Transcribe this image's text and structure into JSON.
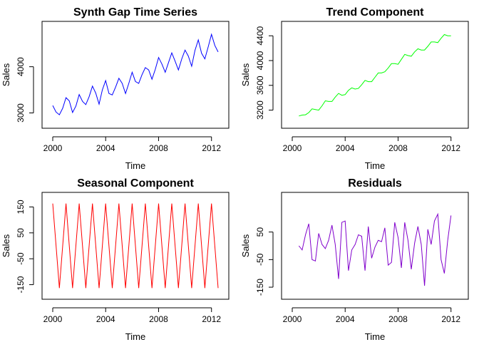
{
  "chart_data": [
    {
      "type": "line",
      "title": "Synth Gap Time Series",
      "xlabel": "Time",
      "ylabel": "Sales",
      "xlim": [
        2000,
        2012.5
      ],
      "ylim": [
        2900,
        4750
      ],
      "xticks": [
        2000,
        2004,
        2008,
        2012
      ],
      "yticks": [
        3000,
        4000
      ],
      "color": "#0000ff",
      "x": [
        2000.0,
        2000.25,
        2000.5,
        2000.75,
        2001.0,
        2001.25,
        2001.5,
        2001.75,
        2002.0,
        2002.25,
        2002.5,
        2002.75,
        2003.0,
        2003.25,
        2003.5,
        2003.75,
        2004.0,
        2004.25,
        2004.5,
        2004.75,
        2005.0,
        2005.25,
        2005.5,
        2005.75,
        2006.0,
        2006.25,
        2006.5,
        2006.75,
        2007.0,
        2007.25,
        2007.5,
        2007.75,
        2008.0,
        2008.25,
        2008.5,
        2008.75,
        2009.0,
        2009.25,
        2009.5,
        2009.75,
        2010.0,
        2010.25,
        2010.5,
        2010.75,
        2011.0,
        2011.25,
        2011.5,
        2011.75,
        2012.0,
        2012.25,
        2012.5
      ],
      "values": [
        3160,
        3020,
        2960,
        3100,
        3330,
        3260,
        3010,
        3150,
        3400,
        3250,
        3180,
        3350,
        3580,
        3430,
        3190,
        3500,
        3700,
        3420,
        3390,
        3560,
        3750,
        3640,
        3420,
        3640,
        3880,
        3680,
        3640,
        3830,
        3980,
        3930,
        3730,
        3940,
        4200,
        4060,
        3880,
        4090,
        4300,
        4120,
        3930,
        4170,
        4360,
        4230,
        4010,
        4350,
        4580,
        4290,
        4170,
        4430,
        4700,
        4460,
        4320
      ]
    },
    {
      "type": "line",
      "title": "Trend Component",
      "xlabel": "Time",
      "ylabel": "Sales",
      "xlim": [
        2000,
        2012.5
      ],
      "ylim": [
        3080,
        4460
      ],
      "xticks": [
        2000,
        2004,
        2008,
        2012
      ],
      "yticks": [
        3200,
        3600,
        4000,
        4400
      ],
      "color": "#00ff00",
      "x": [
        2000.5,
        2000.75,
        2001.0,
        2001.25,
        2001.5,
        2001.75,
        2002.0,
        2002.25,
        2002.5,
        2002.75,
        2003.0,
        2003.25,
        2003.5,
        2003.75,
        2004.0,
        2004.25,
        2004.5,
        2004.75,
        2005.0,
        2005.25,
        2005.5,
        2005.75,
        2006.0,
        2006.25,
        2006.5,
        2006.75,
        2007.0,
        2007.25,
        2007.5,
        2007.75,
        2008.0,
        2008.25,
        2008.5,
        2008.75,
        2009.0,
        2009.25,
        2009.5,
        2009.75,
        2010.0,
        2010.25,
        2010.5,
        2010.75,
        2011.0,
        2011.25,
        2011.5,
        2011.75,
        2012.0
      ],
      "values": [
        3105,
        3120,
        3125,
        3160,
        3220,
        3210,
        3200,
        3270,
        3350,
        3340,
        3340,
        3410,
        3470,
        3440,
        3450,
        3520,
        3560,
        3540,
        3550,
        3610,
        3680,
        3660,
        3660,
        3730,
        3800,
        3800,
        3820,
        3880,
        3950,
        3950,
        3940,
        4020,
        4100,
        4080,
        4070,
        4140,
        4190,
        4170,
        4170,
        4230,
        4300,
        4300,
        4290,
        4360,
        4420,
        4400,
        4400
      ]
    },
    {
      "type": "line",
      "title": "Seasonal Component",
      "xlabel": "Time",
      "ylabel": "Sales",
      "xlim": [
        2000,
        2012.5
      ],
      "ylim": [
        -165,
        165
      ],
      "xticks": [
        2000,
        2004,
        2008,
        2012
      ],
      "yticks": [
        -150,
        -50,
        50,
        150
      ],
      "color": "#ff0000",
      "x": [
        2000.0,
        2000.5,
        2001.0,
        2001.5,
        2002.0,
        2002.5,
        2003.0,
        2003.5,
        2004.0,
        2004.5,
        2005.0,
        2005.5,
        2006.0,
        2006.5,
        2007.0,
        2007.5,
        2008.0,
        2008.5,
        2009.0,
        2009.5,
        2010.0,
        2010.5,
        2011.0,
        2011.5,
        2012.0,
        2012.5
      ],
      "values": [
        163,
        -163,
        163,
        -163,
        163,
        -163,
        163,
        -163,
        163,
        -163,
        163,
        -163,
        163,
        -163,
        163,
        -163,
        163,
        -163,
        163,
        -163,
        163,
        -163,
        163,
        -163,
        163,
        -163
      ]
    },
    {
      "type": "line",
      "title": "Residuals",
      "xlabel": "Time",
      "ylabel": "Sales",
      "xlim": [
        2000,
        2012.5
      ],
      "ylim": [
        -155,
        155
      ],
      "xticks": [
        2000,
        2004,
        2008,
        2012
      ],
      "yticks": [
        -150,
        -50,
        50
      ],
      "color": "#8000cc",
      "x": [
        2000.5,
        2000.75,
        2001.0,
        2001.25,
        2001.5,
        2001.75,
        2002.0,
        2002.25,
        2002.5,
        2002.75,
        2003.0,
        2003.25,
        2003.5,
        2003.75,
        2004.0,
        2004.25,
        2004.5,
        2004.75,
        2005.0,
        2005.25,
        2005.5,
        2005.75,
        2006.0,
        2006.25,
        2006.5,
        2006.75,
        2007.0,
        2007.25,
        2007.5,
        2007.75,
        2008.0,
        2008.25,
        2008.5,
        2008.75,
        2009.0,
        2009.25,
        2009.5,
        2009.75,
        2010.0,
        2010.25,
        2010.5,
        2010.75,
        2011.0,
        2011.25,
        2011.5,
        2011.75,
        2012.0
      ],
      "values": [
        0,
        -15,
        40,
        80,
        -50,
        -55,
        45,
        5,
        -10,
        20,
        75,
        5,
        -120,
        85,
        90,
        -90,
        -15,
        5,
        40,
        35,
        -90,
        70,
        -45,
        -5,
        20,
        15,
        65,
        -70,
        -60,
        85,
        30,
        -80,
        85,
        20,
        -85,
        10,
        70,
        5,
        -145,
        60,
        5,
        90,
        115,
        -50,
        -100,
        20,
        110
      ]
    }
  ]
}
